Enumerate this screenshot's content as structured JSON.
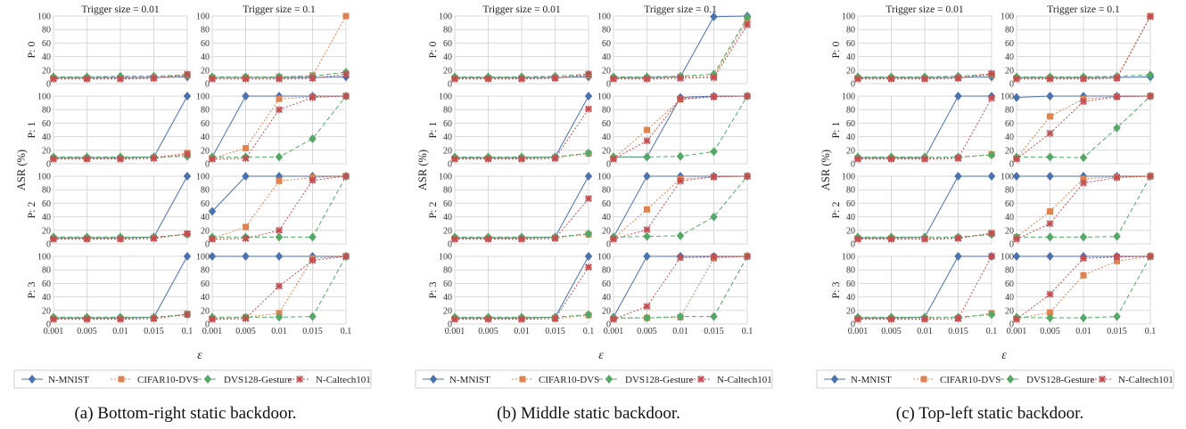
{
  "chart_data": [
    {
      "type": "line",
      "caption": "(a) Bottom-right static backdoor.",
      "column_titles": [
        "Trigger size = 0.01",
        "Trigger size = 0.1"
      ],
      "row_labels": [
        "P: 0",
        "P: 1",
        "P: 2",
        "P: 3"
      ],
      "ylabel": "ASR (%)",
      "xlabel": "ε",
      "x": [
        "0.001",
        "0.005",
        "0.01",
        "0.015",
        "0.1"
      ],
      "ylim": [
        0,
        100
      ],
      "yticks": [
        "0",
        "20",
        "40",
        "60",
        "80",
        "100"
      ],
      "panels": [
        [
          {
            "N-MNIST": [
              9,
              9,
              9,
              9,
              10
            ],
            "CIFAR10-DVS": [
              8,
              8,
              8,
              8,
              12
            ],
            "DVS128-Gesture": [
              10,
              10,
              11,
              11,
              13
            ],
            "N-Caltech101": [
              7,
              7,
              7,
              8,
              14
            ]
          },
          {
            "N-MNIST": [
              9,
              9,
              9,
              9,
              10
            ],
            "CIFAR10-DVS": [
              9,
              9,
              10,
              12,
              100
            ],
            "DVS128-Gesture": [
              10,
              10,
              10,
              11,
              17
            ],
            "N-Caltech101": [
              7,
              7,
              7,
              8,
              14
            ]
          }
        ],
        [
          {
            "N-MNIST": [
              9,
              9,
              9,
              10,
              100
            ],
            "CIFAR10-DVS": [
              8,
              8,
              8,
              9,
              16
            ],
            "DVS128-Gesture": [
              10,
              10,
              10,
              10,
              11
            ],
            "N-Caltech101": [
              7,
              7,
              7,
              8,
              14
            ]
          },
          {
            "N-MNIST": [
              10,
              100,
              100,
              100,
              100
            ],
            "CIFAR10-DVS": [
              8,
              23,
              96,
              99,
              100
            ],
            "DVS128-Gesture": [
              10,
              10,
              10,
              37,
              100
            ],
            "N-Caltech101": [
              7,
              8,
              80,
              98,
              100
            ]
          }
        ],
        [
          {
            "N-MNIST": [
              9,
              9,
              9,
              10,
              100
            ],
            "CIFAR10-DVS": [
              8,
              8,
              8,
              9,
              15
            ],
            "DVS128-Gesture": [
              10,
              10,
              10,
              10,
              14
            ],
            "N-Caltech101": [
              7,
              7,
              7,
              8,
              15
            ]
          },
          {
            "N-MNIST": [
              48,
              100,
              100,
              100,
              100
            ],
            "CIFAR10-DVS": [
              8,
              25,
              93,
              98,
              100
            ],
            "DVS128-Gesture": [
              10,
              10,
              10,
              10,
              100
            ],
            "N-Caltech101": [
              7,
              8,
              20,
              94,
              100
            ]
          }
        ],
        [
          {
            "N-MNIST": [
              9,
              9,
              9,
              10,
              100
            ],
            "CIFAR10-DVS": [
              8,
              8,
              8,
              8,
              15
            ],
            "DVS128-Gesture": [
              10,
              10,
              10,
              10,
              14
            ],
            "N-Caltech101": [
              7,
              7,
              7,
              8,
              14
            ]
          },
          {
            "N-MNIST": [
              100,
              100,
              100,
              100,
              100
            ],
            "CIFAR10-DVS": [
              8,
              10,
              16,
              97,
              100
            ],
            "DVS128-Gesture": [
              10,
              10,
              10,
              11,
              100
            ],
            "N-Caltech101": [
              7,
              8,
              56,
              94,
              100
            ]
          }
        ]
      ]
    },
    {
      "type": "line",
      "caption": "(b) Middle static backdoor.",
      "column_titles": [
        "Trigger size = 0.01",
        "Trigger size = 0.1"
      ],
      "row_labels": [
        "P: 0",
        "P: 1",
        "P: 2",
        "P: 3"
      ],
      "ylabel": "ASR (%)",
      "xlabel": "ε",
      "x": [
        "0.001",
        "0.005",
        "0.01",
        "0.015",
        "0.1"
      ],
      "ylim": [
        0,
        100
      ],
      "yticks": [
        "0",
        "20",
        "40",
        "60",
        "80",
        "100"
      ],
      "panels": [
        [
          {
            "N-MNIST": [
              9,
              9,
              9,
              9,
              10
            ],
            "CIFAR10-DVS": [
              8,
              8,
              8,
              9,
              12
            ],
            "DVS128-Gesture": [
              10,
              10,
              10,
              11,
              14
            ],
            "N-Caltech101": [
              7,
              7,
              7,
              8,
              14
            ]
          },
          {
            "N-MNIST": [
              9,
              9,
              10,
              99,
              100
            ],
            "CIFAR10-DVS": [
              8,
              8,
              10,
              11,
              94
            ],
            "DVS128-Gesture": [
              10,
              10,
              11,
              14,
              98
            ],
            "N-Caltech101": [
              7,
              7,
              8,
              9,
              87
            ]
          }
        ],
        [
          {
            "N-MNIST": [
              9,
              9,
              9,
              10,
              100
            ],
            "CIFAR10-DVS": [
              8,
              8,
              8,
              9,
              15
            ],
            "DVS128-Gesture": [
              10,
              10,
              10,
              10,
              16
            ],
            "N-Caltech101": [
              7,
              7,
              7,
              8,
              81
            ]
          },
          {
            "N-MNIST": [
              10,
              10,
              98,
              100,
              100
            ],
            "CIFAR10-DVS": [
              8,
              50,
              95,
              99,
              100
            ],
            "DVS128-Gesture": [
              10,
              10,
              11,
              18,
              100
            ],
            "N-Caltech101": [
              7,
              34,
              96,
              99,
              100
            ]
          }
        ],
        [
          {
            "N-MNIST": [
              9,
              9,
              9,
              10,
              100
            ],
            "CIFAR10-DVS": [
              8,
              8,
              8,
              9,
              14
            ],
            "DVS128-Gesture": [
              10,
              10,
              10,
              10,
              15
            ],
            "N-Caltech101": [
              7,
              7,
              7,
              8,
              67
            ]
          },
          {
            "N-MNIST": [
              10,
              100,
              100,
              100,
              100
            ],
            "CIFAR10-DVS": [
              8,
              51,
              96,
              99,
              100
            ],
            "DVS128-Gesture": [
              10,
              11,
              12,
              40,
              100
            ],
            "N-Caltech101": [
              7,
              21,
              93,
              99,
              100
            ]
          }
        ],
        [
          {
            "N-MNIST": [
              9,
              9,
              9,
              10,
              100
            ],
            "CIFAR10-DVS": [
              8,
              8,
              8,
              8,
              13
            ],
            "DVS128-Gesture": [
              10,
              10,
              10,
              10,
              14
            ],
            "N-Caltech101": [
              7,
              7,
              7,
              8,
              84
            ]
          },
          {
            "N-MNIST": [
              10,
              100,
              100,
              100,
              100
            ],
            "CIFAR10-DVS": [
              8,
              9,
              10,
              97,
              100
            ],
            "DVS128-Gesture": [
              9,
              9,
              11,
              11,
              100
            ],
            "N-Caltech101": [
              7,
              26,
              98,
              99,
              100
            ]
          }
        ]
      ]
    },
    {
      "type": "line",
      "caption": "(c) Top-left static backdoor.",
      "column_titles": [
        "Trigger size = 0.01",
        "Trigger size = 0.1"
      ],
      "row_labels": [
        "P: 0",
        "P: 1",
        "P: 2",
        "P: 3"
      ],
      "ylabel": "ASR (%)",
      "xlabel": "ε",
      "x": [
        "0.001",
        "0.005",
        "0.01",
        "0.015",
        "0.1"
      ],
      "ylim": [
        0,
        100
      ],
      "yticks": [
        "0",
        "20",
        "40",
        "60",
        "80",
        "100"
      ],
      "panels": [
        [
          {
            "N-MNIST": [
              9,
              9,
              9,
              9,
              10
            ],
            "CIFAR10-DVS": [
              8,
              8,
              8,
              9,
              13
            ],
            "DVS128-Gesture": [
              10,
              10,
              10,
              11,
              14
            ],
            "N-Caltech101": [
              7,
              7,
              7,
              8,
              15
            ]
          },
          {
            "N-MNIST": [
              9,
              9,
              9,
              9,
              10
            ],
            "CIFAR10-DVS": [
              8,
              8,
              8,
              9,
              100
            ],
            "DVS128-Gesture": [
              10,
              10,
              10,
              11,
              13
            ],
            "N-Caltech101": [
              7,
              7,
              7,
              8,
              99
            ]
          }
        ],
        [
          {
            "N-MNIST": [
              9,
              9,
              9,
              100,
              100
            ],
            "CIFAR10-DVS": [
              8,
              8,
              8,
              9,
              14
            ],
            "DVS128-Gesture": [
              10,
              10,
              10,
              10,
              13
            ],
            "N-Caltech101": [
              7,
              7,
              7,
              8,
              97
            ]
          },
          {
            "N-MNIST": [
              98,
              100,
              100,
              100,
              100
            ],
            "CIFAR10-DVS": [
              8,
              70,
              96,
              99,
              100
            ],
            "DVS128-Gesture": [
              10,
              10,
              9,
              53,
              100
            ],
            "N-Caltech101": [
              7,
              45,
              92,
              99,
              100
            ]
          }
        ],
        [
          {
            "N-MNIST": [
              9,
              9,
              10,
              100,
              100
            ],
            "CIFAR10-DVS": [
              8,
              8,
              8,
              9,
              15
            ],
            "DVS128-Gesture": [
              10,
              10,
              10,
              10,
              14
            ],
            "N-Caltech101": [
              7,
              7,
              7,
              8,
              16
            ]
          },
          {
            "N-MNIST": [
              100,
              100,
              100,
              100,
              100
            ],
            "CIFAR10-DVS": [
              10,
              48,
              96,
              99,
              100
            ],
            "DVS128-Gesture": [
              10,
              10,
              10,
              11,
              100
            ],
            "N-Caltech101": [
              7,
              30,
              90,
              98,
              100
            ]
          }
        ],
        [
          {
            "N-MNIST": [
              9,
              9,
              10,
              100,
              100
            ],
            "CIFAR10-DVS": [
              8,
              8,
              8,
              8,
              16
            ],
            "DVS128-Gesture": [
              10,
              10,
              10,
              10,
              14
            ],
            "N-Caltech101": [
              7,
              7,
              7,
              8,
              100
            ]
          },
          {
            "N-MNIST": [
              100,
              100,
              100,
              100,
              100
            ],
            "CIFAR10-DVS": [
              8,
              17,
              72,
              93,
              100
            ],
            "DVS128-Gesture": [
              10,
              9,
              9,
              11,
              100
            ],
            "N-Caltech101": [
              7,
              44,
              97,
              99,
              100
            ]
          }
        ]
      ]
    }
  ],
  "series": [
    {
      "name": "N-MNIST",
      "color": "#4c72b0",
      "marker": "diamond",
      "dash": "solid"
    },
    {
      "name": "CIFAR10-DVS",
      "color": "#dd8452",
      "marker": "square",
      "dash": "dotted"
    },
    {
      "name": "DVS128-Gesture",
      "color": "#55a868",
      "marker": "diamond",
      "dash": "dashed"
    },
    {
      "name": "N-Caltech101",
      "color": "#c44e52",
      "marker": "x",
      "dash": "dotted"
    }
  ],
  "grid": true,
  "legend_position": "bottom"
}
